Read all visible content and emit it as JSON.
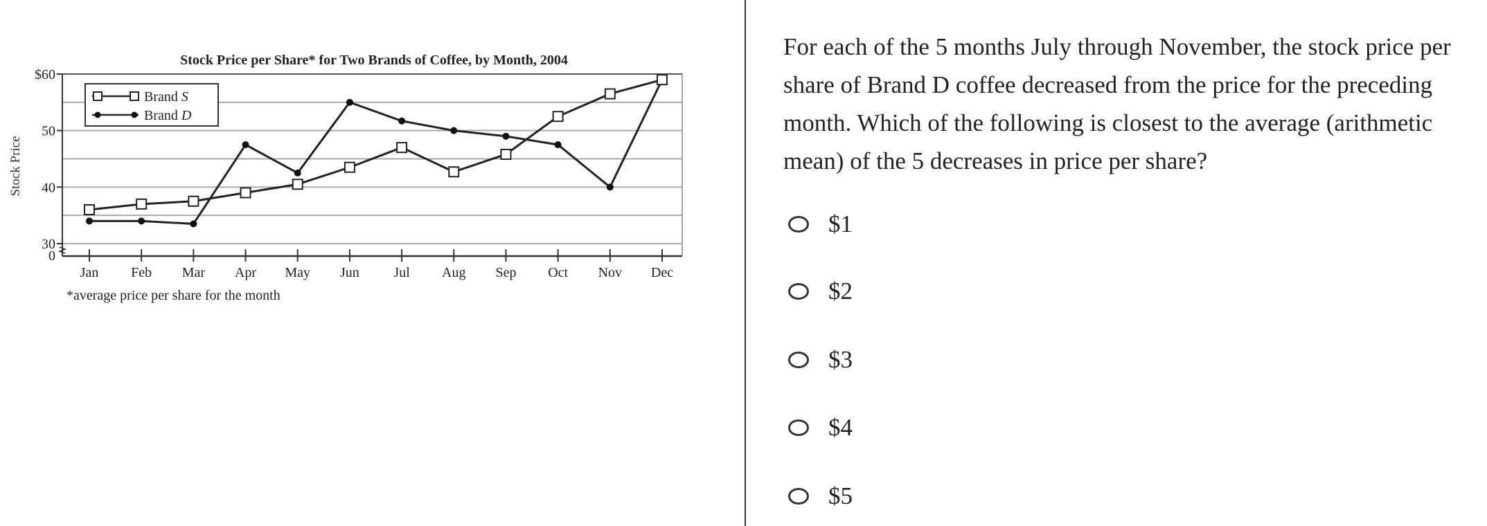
{
  "chart_data": {
    "type": "line",
    "title": "Stock Price per Share* for Two Brands of Coffee, by Month, 2004",
    "ylabel": "Stock Price",
    "xlabel": "",
    "footnote": "*average price per share for the month",
    "categories": [
      "Jan",
      "Feb",
      "Mar",
      "Apr",
      "May",
      "Jun",
      "Jul",
      "Aug",
      "Sep",
      "Oct",
      "Nov",
      "Dec"
    ],
    "ylim": [
      30,
      60
    ],
    "axis_break": true,
    "yticks": [
      {
        "value": 60,
        "label": "$60"
      },
      {
        "value": 50,
        "label": "50"
      },
      {
        "value": 40,
        "label": "40"
      },
      {
        "value": 30,
        "label": "30"
      }
    ],
    "zero_label": "0",
    "gridlines": [
      30,
      35,
      40,
      45,
      50,
      55,
      60
    ],
    "grid": true,
    "legend_position": "top-left",
    "series": [
      {
        "name": "Brand S",
        "legend_prefix": "Brand ",
        "legend_letter": "S",
        "marker": "open-square",
        "values": [
          36,
          37,
          37.5,
          39,
          40.5,
          43.5,
          47,
          42.7,
          45.8,
          52.5,
          56.5,
          59
        ]
      },
      {
        "name": "Brand D",
        "legend_prefix": "Brand ",
        "legend_letter": "D",
        "marker": "filled-circle",
        "values": [
          34,
          34,
          33.5,
          47.5,
          42.5,
          55,
          51.7,
          50,
          49,
          47.5,
          40,
          59
        ]
      }
    ]
  },
  "question": {
    "text": "For each of the 5 months July through November, the stock price per share of Brand D coffee decreased from the price for the preceding month. Which of the following is closest to the average (arithmetic mean) of the 5 decreases in price per share?",
    "options": [
      "$1",
      "$2",
      "$3",
      "$4",
      "$5"
    ],
    "selected": null
  }
}
